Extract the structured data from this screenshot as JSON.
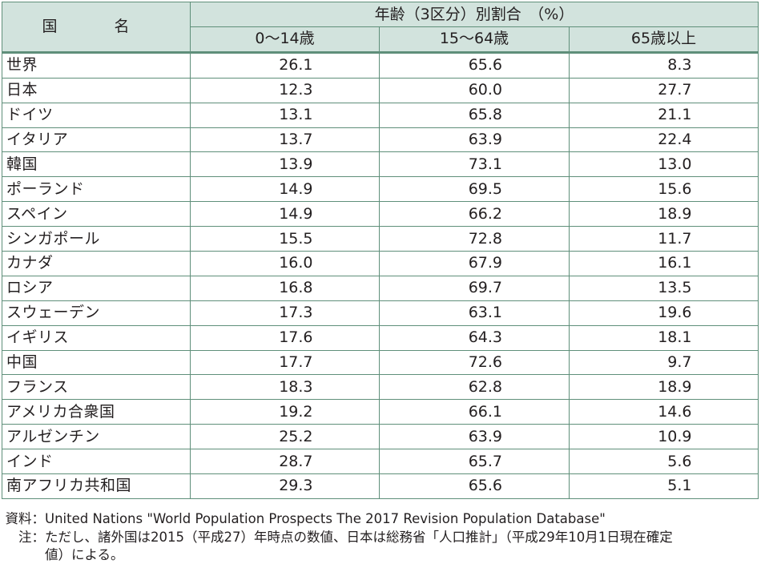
{
  "table": {
    "header": {
      "country": "国　名",
      "group": "年齢（3区分）別割合　（%）",
      "columns": [
        "0〜14歳",
        "15〜64歳",
        "65歳以上"
      ]
    },
    "rows": [
      {
        "country": "世界",
        "c1": "26.1",
        "c2": "65.6",
        "c3": "8.3"
      },
      {
        "country": "日本",
        "c1": "12.3",
        "c2": "60.0",
        "c3": "27.7"
      },
      {
        "country": "ドイツ",
        "c1": "13.1",
        "c2": "65.8",
        "c3": "21.1"
      },
      {
        "country": "イタリア",
        "c1": "13.7",
        "c2": "63.9",
        "c3": "22.4"
      },
      {
        "country": "韓国",
        "c1": "13.9",
        "c2": "73.1",
        "c3": "13.0"
      },
      {
        "country": "ポーランド",
        "c1": "14.9",
        "c2": "69.5",
        "c3": "15.6"
      },
      {
        "country": "スペイン",
        "c1": "14.9",
        "c2": "66.2",
        "c3": "18.9"
      },
      {
        "country": "シンガポール",
        "c1": "15.5",
        "c2": "72.8",
        "c3": "11.7"
      },
      {
        "country": "カナダ",
        "c1": "16.0",
        "c2": "67.9",
        "c3": "16.1"
      },
      {
        "country": "ロシア",
        "c1": "16.8",
        "c2": "69.7",
        "c3": "13.5"
      },
      {
        "country": "スウェーデン",
        "c1": "17.3",
        "c2": "63.1",
        "c3": "19.6"
      },
      {
        "country": "イギリス",
        "c1": "17.6",
        "c2": "64.3",
        "c3": "18.1"
      },
      {
        "country": "中国",
        "c1": "17.7",
        "c2": "72.6",
        "c3": "9.7"
      },
      {
        "country": "フランス",
        "c1": "18.3",
        "c2": "62.8",
        "c3": "18.9"
      },
      {
        "country": "アメリカ合衆国",
        "c1": "19.2",
        "c2": "66.1",
        "c3": "14.6"
      },
      {
        "country": "アルゼンチン",
        "c1": "25.2",
        "c2": "63.9",
        "c3": "10.9"
      },
      {
        "country": "インド",
        "c1": "28.7",
        "c2": "65.7",
        "c3": "5.6"
      },
      {
        "country": "南アフリカ共和国",
        "c1": "29.3",
        "c2": "65.6",
        "c3": "5.1"
      }
    ]
  },
  "notes": {
    "source_label": "資料：",
    "source_text": "United Nations \"World Population Prospects The 2017 Revision Population Database\"",
    "note_label": "注：",
    "note_text_line1": "ただし、諸外国は2015（平成27）年時点の数値、日本は総務省「人口推計」（平成29年10月1日現在確定",
    "note_text_line2": "値）による。"
  }
}
